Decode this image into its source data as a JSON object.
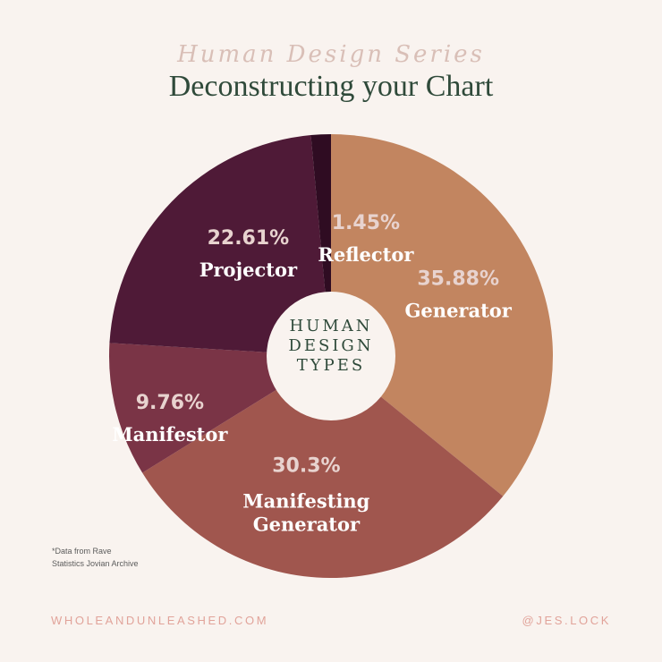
{
  "header": {
    "series": "Human Design Series",
    "title": "Deconstructing your Chart"
  },
  "chart_data": {
    "type": "pie",
    "style": "donut",
    "center_label": [
      "HUMAN",
      "DESIGN",
      "TYPES"
    ],
    "slices": [
      {
        "label": [
          "Generator"
        ],
        "value": 35.88,
        "value_text": "35.88%",
        "color": "#c28560"
      },
      {
        "label": [
          "Manifesting",
          "Generator"
        ],
        "value": 30.3,
        "value_text": "30.3%",
        "color": "#a0564e"
      },
      {
        "label": [
          "Manifestor"
        ],
        "value": 9.76,
        "value_text": "9.76%",
        "color": "#7a3446"
      },
      {
        "label": [
          "Projector"
        ],
        "value": 22.61,
        "value_text": "22.61%",
        "color": "#4f1a37"
      },
      {
        "label": [
          "Reflector"
        ],
        "value": 1.45,
        "value_text": "1.45%",
        "color": "#2f0c22"
      }
    ]
  },
  "footnote": [
    "*Data from Rave",
    "Statistics Jovian Archive"
  ],
  "footer": {
    "website": "WHOLEANDUNLEASHED.COM",
    "handle": "@JES.LOCK"
  },
  "colors": {
    "background": "#f9f3ef",
    "title": "#2f4a3a",
    "percent_text": "#e8d3cf",
    "label_text": "#ffffff",
    "footer": "#e1a39a"
  }
}
